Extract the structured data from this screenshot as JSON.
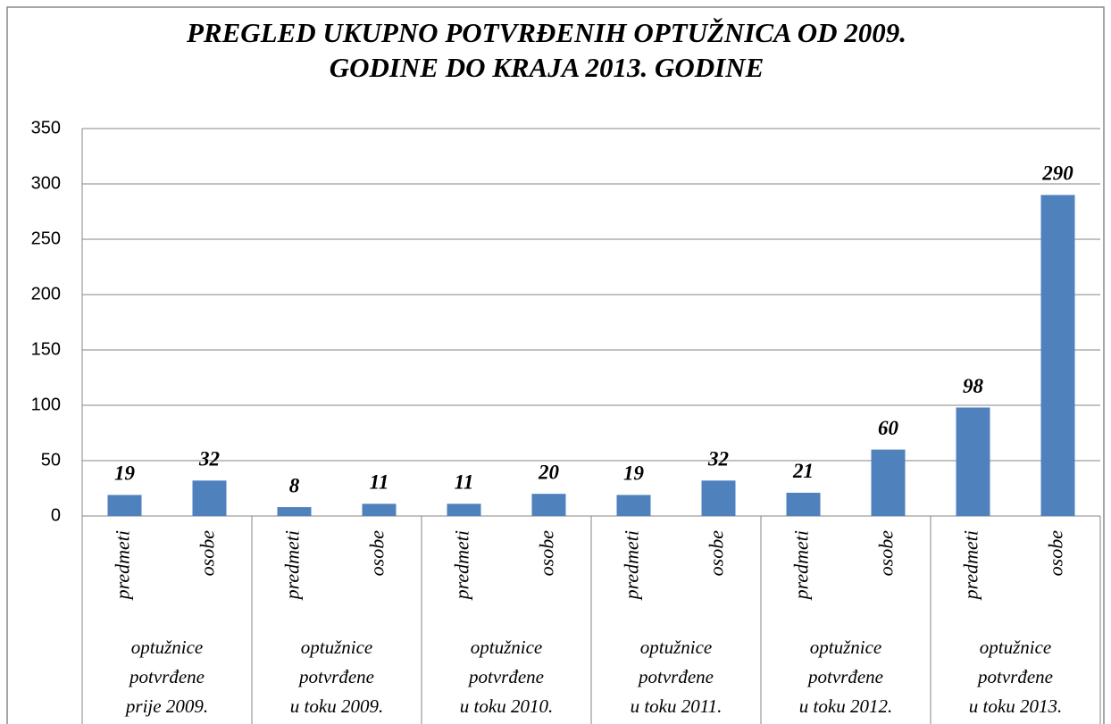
{
  "chart_data": {
    "type": "bar",
    "title": [
      "PREGLED UKUPNO POTVRĐENIH OPTUŽNICA OD 2009.",
      "GODINE DO KRAJA 2013. GODINE"
    ],
    "categories": [
      "predmeti",
      "osobe",
      "predmeti",
      "osobe",
      "predmeti",
      "osobe",
      "predmeti",
      "osobe",
      "predmeti",
      "osobe",
      "predmeti",
      "osobe"
    ],
    "groups": [
      [
        "optužnice",
        "potvrđene",
        "prije 2009."
      ],
      [
        "optužnice",
        "potvrđene",
        "u toku 2009."
      ],
      [
        "optužnice",
        "potvrđene",
        "u toku 2010."
      ],
      [
        "optužnice",
        "potvrđene",
        "u toku 2011."
      ],
      [
        "optužnice",
        "potvrđene",
        "u toku 2012."
      ],
      [
        "optužnice",
        "potvrđene",
        "u toku 2013."
      ]
    ],
    "values": [
      19,
      32,
      8,
      11,
      11,
      20,
      19,
      32,
      21,
      60,
      98,
      290
    ],
    "color": "#4f81bd",
    "ylim": [
      0,
      350
    ],
    "yticks": [
      0,
      50,
      100,
      150,
      200,
      250,
      300,
      350
    ],
    "grid": true
  }
}
